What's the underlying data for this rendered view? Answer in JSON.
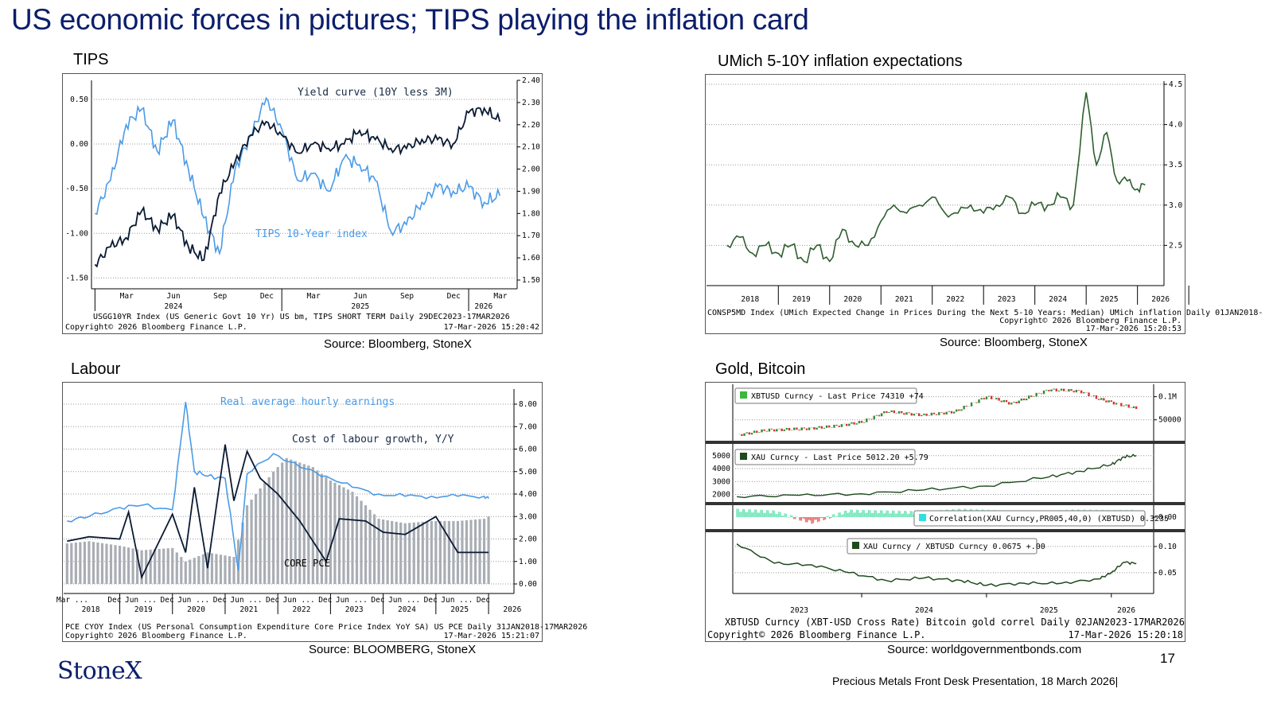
{
  "slide": {
    "title": "US  economic forces in pictures; TIPS playing the inflation card",
    "logo": "StoneX",
    "page_number": "17",
    "footer": "Precious Metals Front Desk Presentation, 18 March 2026|"
  },
  "panels": {
    "tips": {
      "caption": "TIPS",
      "source": "Source: Bloomberg, StoneX",
      "footer_line1": "USGG10YR Index (US Generic Govt 10 Yr) US bm, TIPS SHORT TERM Daily 29DEC2023-17MAR2026",
      "footer_line2_left": "Copyright© 2026 Bloomberg Finance L.P.",
      "footer_line2_right": "17-Mar-2026 15:20:42",
      "colors": {
        "yield_curve": "#0a1a33",
        "tips": "#4a9be8"
      }
    },
    "umich": {
      "caption": "UMich 5-10Y inflation expectations",
      "source": "Source: Bloomberg, StoneX",
      "footer_line1": "CONSP5MD Index (UMich Expected Change in Prices During the Next 5-10 Years: Median) UMich inflation Daily 01JAN2018-",
      "footer_line2": "Copyright© 2026 Bloomberg Finance L.P.",
      "footer_line3": "17-Mar-2026 15:20:53",
      "colors": {
        "line": "#2e5e2e"
      }
    },
    "labour": {
      "caption": "Labour",
      "source": "Source: BLOOMBERG, StoneX",
      "footer_line1": "PCE CYOY Index (US Personal Consumption Expenditure Core Price Index YoY SA) US PCE Daily 31JAN2018-17MAR2026",
      "footer_line2_left": "Copyright© 2026 Bloomberg Finance L.P.",
      "footer_line2_right": "17-Mar-2026 15:21:07",
      "colors": {
        "earnings": "#4a9be8",
        "cost": "#0a1a33",
        "bars": "#a9adb4"
      }
    },
    "gold": {
      "caption": "Gold, Bitcoin",
      "source": "Source: worldgovernmentbonds.com",
      "footer_line1": "XBTUSD Curncy (XBT-USD Cross Rate) Bitcoin gold correl Daily 02JAN2023-17MAR2026",
      "footer_line2_left": "Copyright© 2026 Bloomberg Finance L.P.",
      "footer_line2_right": "17-Mar-2026 15:20:18",
      "legend_btc": "XBTUSD Curncy - Last Price 74310  +74",
      "legend_xau": "XAU Curncy - Last Price 5012.20  +5.79",
      "legend_corr": "Correlation(XAU Curncy,PR005,40,0) (XBTUSD) 0.3235",
      "legend_ratio": "XAU Curncy / XBTUSD Curncy 0.0675  +.00",
      "colors": {
        "up": "#2e8b2e",
        "down": "#d83030",
        "gold": "#1e4a1e",
        "corr_pos": "#7ee8c0",
        "corr_neg": "#e87878",
        "ratio": "#1e4a1e",
        "legend_btc_box": "#3cb83c",
        "legend_corr_box": "#30e0e0"
      }
    }
  },
  "chart_data": [
    {
      "type": "line",
      "id": "tips",
      "series": [
        {
          "name": "Yield curve (10Y less 3M)",
          "axis": "left",
          "x": [
            "2024-01-01",
            "2024-02-01",
            "2024-03-01",
            "2024-04-01",
            "2024-05-01",
            "2024-06-01",
            "2024-07-01",
            "2024-08-01",
            "2024-09-01",
            "2024-10-01",
            "2024-11-01",
            "2024-12-01",
            "2025-01-01",
            "2025-02-01",
            "2025-03-01",
            "2025-04-01",
            "2025-05-01",
            "2025-06-01",
            "2025-07-01",
            "2025-08-01",
            "2025-09-01",
            "2025-10-01",
            "2025-11-01",
            "2025-12-01",
            "2026-01-01",
            "2026-02-01",
            "2026-03-01"
          ],
          "values": [
            -1.35,
            -1.15,
            -1.05,
            -0.75,
            -0.95,
            -0.8,
            -1.15,
            -1.3,
            -0.55,
            -0.2,
            0.1,
            0.25,
            0.1,
            -0.1,
            0.0,
            -0.05,
            0.0,
            0.15,
            0.05,
            -0.05,
            -0.05,
            0.05,
            0.05,
            0.0,
            0.35,
            0.4,
            0.25
          ]
        },
        {
          "name": "TIPS 10-Year index",
          "axis": "right",
          "x": [
            "2024-01-01",
            "2024-02-01",
            "2024-03-01",
            "2024-04-01",
            "2024-05-01",
            "2024-06-01",
            "2024-07-01",
            "2024-08-01",
            "2024-09-01",
            "2024-10-01",
            "2024-11-01",
            "2024-12-01",
            "2025-01-01",
            "2025-02-01",
            "2025-03-01",
            "2025-04-01",
            "2025-05-01",
            "2025-06-01",
            "2025-07-01",
            "2025-08-01",
            "2025-09-01",
            "2025-10-01",
            "2025-11-01",
            "2025-12-01",
            "2026-01-01",
            "2026-02-01",
            "2026-03-01"
          ],
          "values": [
            1.8,
            1.95,
            2.2,
            2.27,
            2.08,
            2.22,
            2.0,
            1.78,
            1.62,
            2.0,
            2.15,
            2.32,
            2.18,
            1.95,
            1.98,
            1.9,
            2.05,
            2.02,
            1.95,
            1.72,
            1.75,
            1.85,
            1.92,
            1.9,
            1.92,
            1.85,
            1.88
          ]
        }
      ],
      "yaxis_left": {
        "ticks": [
          "0.50",
          "0.00",
          "-0.50",
          "-1.00",
          "-1.50"
        ],
        "ylim": [
          -1.55,
          0.65
        ]
      },
      "yaxis_right": {
        "ticks": [
          "2.40",
          "2.30",
          "2.20",
          "2.10",
          "2.00",
          "1.90",
          "1.80",
          "1.70",
          "1.60",
          "1.50"
        ],
        "ylim": [
          1.5,
          2.4
        ]
      },
      "x_tick_labels": [
        "Mar",
        "Jun",
        "Sep",
        "Dec",
        "Mar",
        "Jun",
        "Sep",
        "Dec",
        "Mar"
      ],
      "x_year_labels": [
        "2024",
        "2025",
        "2026"
      ],
      "annotations": [
        "Yield curve (10Y less 3M)",
        "TIPS 10-Year index"
      ]
    },
    {
      "type": "line",
      "id": "umich",
      "series": [
        {
          "name": "",
          "x": [
            2018.0,
            2018.25,
            2018.5,
            2018.75,
            2019.0,
            2019.25,
            2019.5,
            2019.75,
            2020.0,
            2020.25,
            2020.5,
            2020.75,
            2021.0,
            2021.25,
            2021.5,
            2021.75,
            2022.0,
            2022.25,
            2022.5,
            2022.75,
            2023.0,
            2023.25,
            2023.5,
            2023.75,
            2024.0,
            2024.25,
            2024.5,
            2024.75,
            2025.0,
            2025.2,
            2025.4,
            2025.6,
            2025.8,
            2026.0,
            2026.15
          ],
          "values": [
            2.5,
            2.6,
            2.4,
            2.5,
            2.4,
            2.5,
            2.3,
            2.5,
            2.3,
            2.7,
            2.5,
            2.5,
            2.8,
            3.0,
            2.9,
            3.0,
            3.1,
            2.9,
            2.9,
            3.0,
            2.9,
            3.0,
            3.1,
            2.9,
            3.0,
            3.0,
            3.1,
            3.0,
            4.4,
            3.5,
            3.9,
            3.3,
            3.3,
            3.2,
            3.25
          ]
        }
      ],
      "yaxis": {
        "ticks": [
          "4.5",
          "4.0",
          "3.5",
          "3.0",
          "2.5"
        ],
        "ylim": [
          2.0,
          4.5
        ]
      },
      "x_year_labels": [
        "2018",
        "2019",
        "2020",
        "2021",
        "2022",
        "2023",
        "2024",
        "2025",
        "2026"
      ]
    },
    {
      "type": "bar",
      "id": "labour",
      "bars": {
        "name": "CORE PCE",
        "x": [
          "2018-01",
          "2018-06",
          "2019-01",
          "2019-06",
          "2020-01",
          "2020-04",
          "2020-09",
          "2021-03",
          "2021-06",
          "2021-12",
          "2022-03",
          "2022-09",
          "2023-01",
          "2023-06",
          "2023-12",
          "2024-06",
          "2024-12",
          "2025-06",
          "2025-12",
          "2026-01"
        ],
        "values": [
          1.8,
          1.9,
          1.7,
          1.5,
          1.6,
          1.0,
          1.4,
          1.2,
          3.5,
          5.0,
          5.6,
          5.2,
          4.6,
          4.1,
          2.9,
          2.7,
          2.8,
          2.8,
          2.9,
          3.0
        ]
      },
      "series": [
        {
          "name": "Real average hourly earnings",
          "x": [
            "2018-01",
            "2018-06",
            "2019-01",
            "2019-06",
            "2020-01",
            "2020-04",
            "2020-06",
            "2020-09",
            "2021-01",
            "2021-04",
            "2021-06",
            "2021-12",
            "2022-06",
            "2022-12",
            "2023-06",
            "2023-12",
            "2024-06",
            "2024-12",
            "2025-06",
            "2025-12",
            "2026-01"
          ],
          "values": [
            2.8,
            3.0,
            3.4,
            3.5,
            3.3,
            8.1,
            5.0,
            4.8,
            4.7,
            0.6,
            4.9,
            5.8,
            5.2,
            4.8,
            4.3,
            4.0,
            3.9,
            3.9,
            3.9,
            3.9,
            3.8
          ]
        },
        {
          "name": "Cost of labour growth, Y/Y",
          "x": [
            "2018-01",
            "2018-06",
            "2019-01",
            "2019-03",
            "2019-06",
            "2020-01",
            "2020-04",
            "2020-06",
            "2020-09",
            "2021-01",
            "2021-03",
            "2021-06",
            "2021-09",
            "2022-01",
            "2022-06",
            "2022-12",
            "2023-03",
            "2023-09",
            "2024-01",
            "2024-06",
            "2025-01",
            "2025-06",
            "2026-01"
          ],
          "values": [
            1.9,
            2.1,
            2.0,
            3.2,
            0.3,
            3.1,
            1.4,
            4.3,
            0.7,
            6.2,
            3.7,
            5.9,
            4.7,
            4.0,
            2.8,
            1.0,
            2.9,
            2.8,
            2.3,
            2.2,
            3.0,
            1.4,
            1.4
          ]
        }
      ],
      "yaxis": {
        "ticks": [
          "8.00",
          "7.00",
          "6.00",
          "5.00",
          "4.00",
          "3.00",
          "2.00",
          "1.00",
          "0.00"
        ],
        "ylim": [
          0,
          8.5
        ]
      },
      "x_tick_labels": [
        "Mar ...",
        "Dec",
        "Jun ...",
        "Dec",
        "Jun ...",
        "Dec",
        "Jun ...",
        "Dec",
        "Jun ...",
        "Dec",
        "Jun ...",
        "Dec",
        "Jun ...",
        "Dec",
        "Jun ...",
        "Dec"
      ],
      "x_year_labels": [
        "2018",
        "2019",
        "2020",
        "2021",
        "2022",
        "2023",
        "2024",
        "2025",
        "2026"
      ],
      "annotations": [
        "Real average hourly earnings",
        "Cost of labour growth, Y/Y",
        "CORE PCE"
      ]
    },
    {
      "type": "line",
      "id": "gold_bitcoin",
      "series": [
        {
          "name": "XBTUSD Curncy",
          "axis": "btc",
          "x": [
            2023.0,
            2023.25,
            2023.5,
            2023.75,
            2024.0,
            2024.2,
            2024.5,
            2024.75,
            2025.0,
            2025.2,
            2025.5,
            2025.75,
            2025.9,
            2026.0,
            2026.2
          ],
          "values": [
            17000,
            28000,
            30000,
            35000,
            45000,
            68000,
            60000,
            68000,
            100000,
            85000,
            115000,
            112000,
            95000,
            88000,
            74310
          ]
        },
        {
          "name": "XAU Curncy",
          "axis": "gold",
          "x": [
            2023.0,
            2023.5,
            2024.0,
            2024.5,
            2025.0,
            2025.5,
            2025.75,
            2026.0,
            2026.1,
            2026.2
          ],
          "values": [
            1830,
            1930,
            2050,
            2350,
            2650,
            3350,
            3800,
            4300,
            4900,
            5012.2
          ]
        },
        {
          "name": "Correlation",
          "axis": "corr",
          "x": [
            2023.0,
            2023.3,
            2023.6,
            2023.9,
            2024.2,
            2024.5,
            2024.8,
            2025.1,
            2025.4,
            2025.7,
            2026.0,
            2026.2
          ],
          "values": [
            0.4,
            0.3,
            -0.3,
            0.35,
            0.3,
            0.25,
            0.4,
            0.3,
            0.2,
            0.35,
            0.3,
            0.3235
          ]
        },
        {
          "name": "XAU/XBTUSD",
          "axis": "ratio",
          "x": [
            2023.0,
            2023.3,
            2023.6,
            2023.9,
            2024.2,
            2024.5,
            2024.8,
            2025.0,
            2025.3,
            2025.6,
            2025.9,
            2026.0,
            2026.1,
            2026.2
          ],
          "values": [
            0.105,
            0.068,
            0.065,
            0.05,
            0.035,
            0.04,
            0.035,
            0.026,
            0.03,
            0.03,
            0.038,
            0.05,
            0.07,
            0.0675
          ]
        }
      ],
      "btc_ticks": [
        "0.1M",
        "50000"
      ],
      "gold_ticks": [
        "5000",
        "4000",
        "3000",
        "2000"
      ],
      "corr_ticks": [
        "0.00"
      ],
      "ratio_ticks": [
        "0.10",
        "0.05"
      ],
      "x_year_labels": [
        "2023",
        "2024",
        "2025",
        "2026"
      ]
    }
  ]
}
